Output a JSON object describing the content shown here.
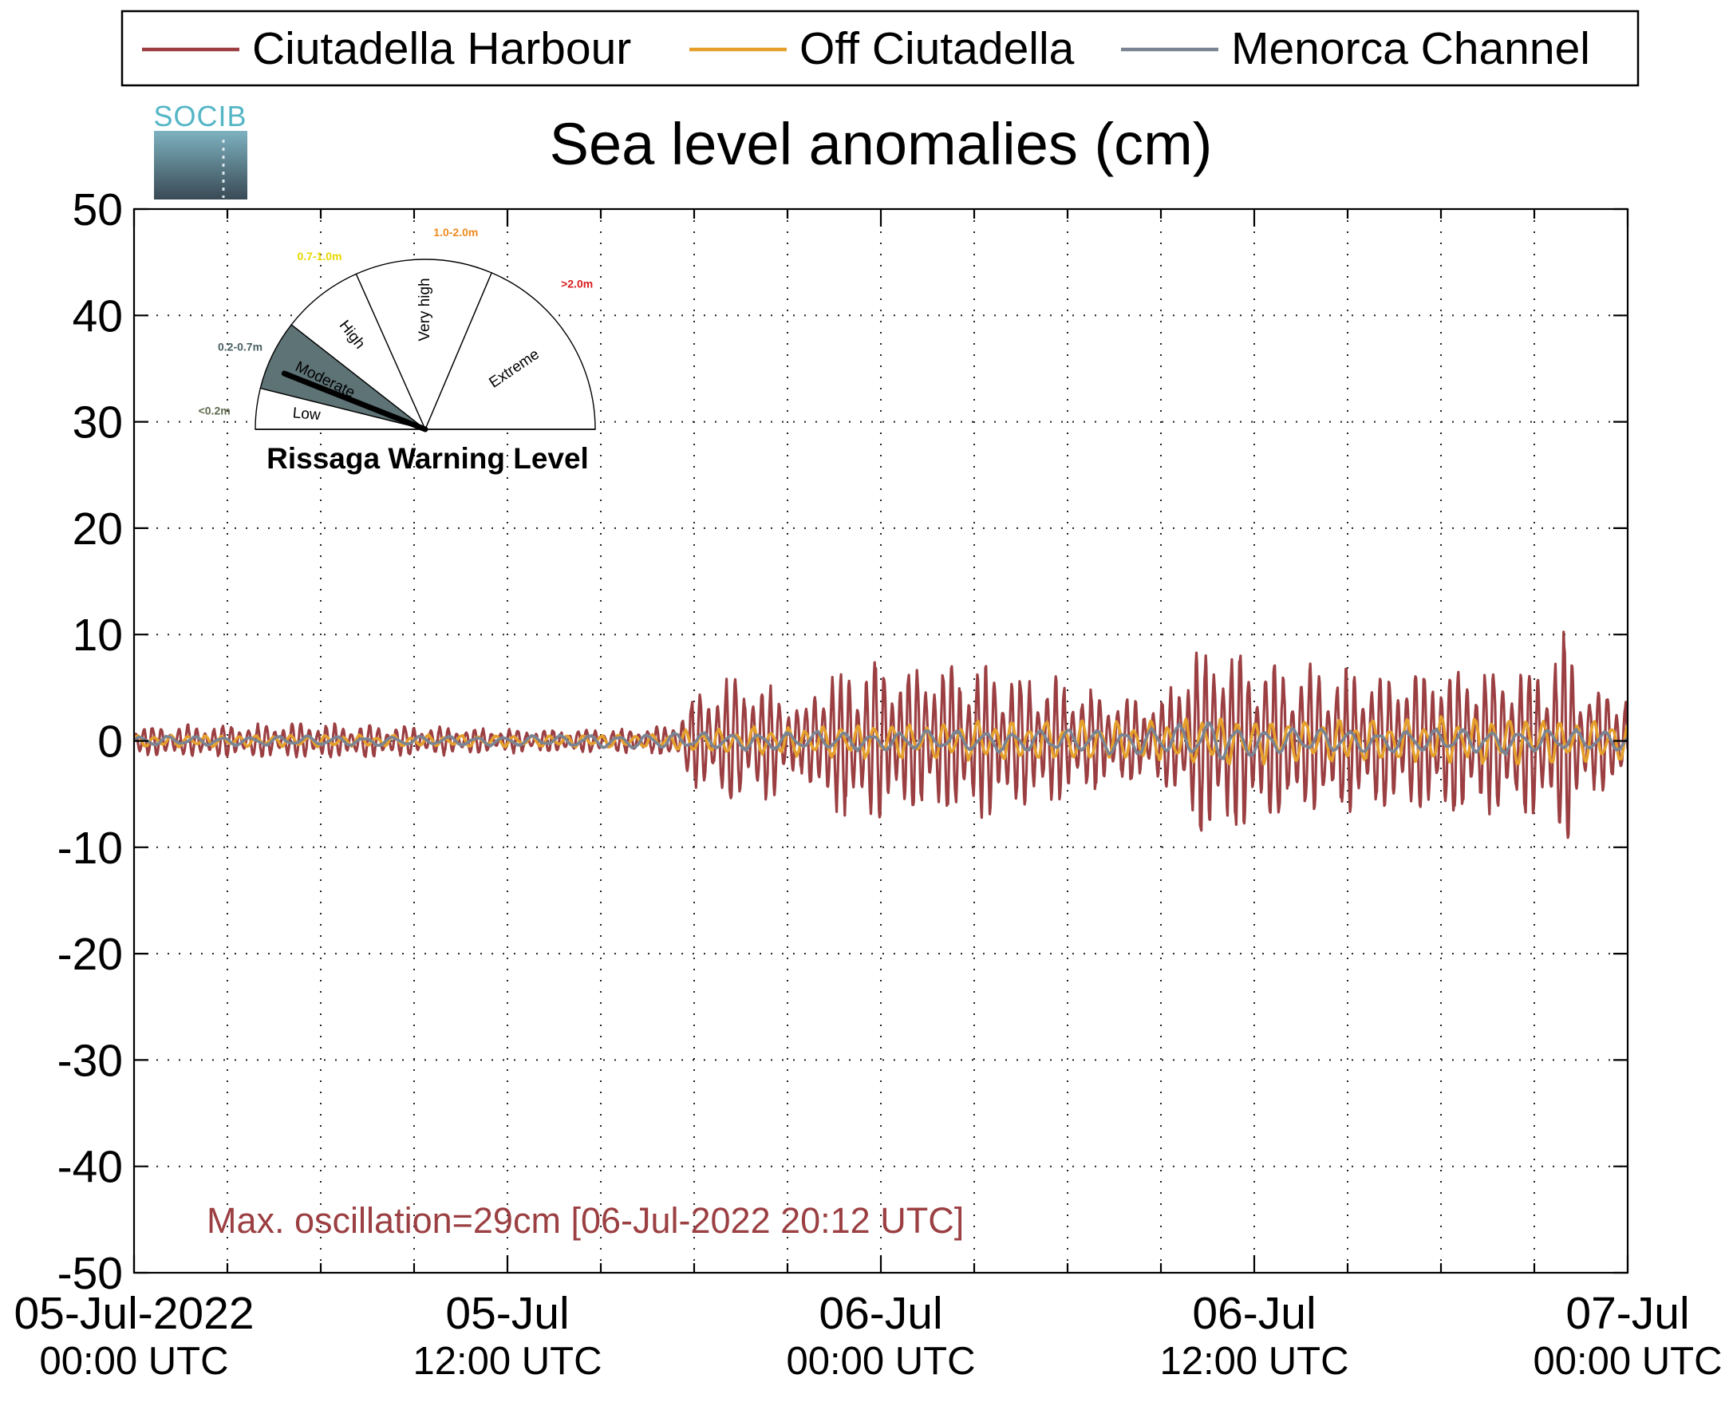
{
  "chart_data": {
    "type": "line",
    "title": "Sea level anomalies (cm)",
    "xlabel": "",
    "ylabel": "",
    "ylim": [
      -50,
      50
    ],
    "xlim_hours": [
      0,
      48
    ],
    "y_ticks": [
      "50",
      "40",
      "30",
      "20",
      "10",
      "0",
      "-10",
      "-20",
      "-30",
      "-40",
      "-50"
    ],
    "x_ticks": [
      {
        "hour": 0,
        "date": "05-Jul-2022",
        "time": "00:00 UTC"
      },
      {
        "hour": 12,
        "date": "05-Jul",
        "time": "12:00 UTC"
      },
      {
        "hour": 24,
        "date": "06-Jul",
        "time": "00:00 UTC"
      },
      {
        "hour": 36,
        "date": "06-Jul",
        "time": "12:00 UTC"
      },
      {
        "hour": 48,
        "date": "07-Jul",
        "time": "00:00 UTC"
      }
    ],
    "grid": true,
    "legend_position": "top",
    "annotation": "Max. oscillation=29cm [06-Jul-2022 20:12 UTC]",
    "series": [
      {
        "name": "Ciutadella Harbour",
        "color": "#9b3f42",
        "amplitude_envelope": {
          "hours": [
            0,
            6,
            12,
            16,
            17.2,
            18,
            19,
            20.5,
            21.5,
            22,
            23.5,
            25,
            27.5,
            28.5,
            30,
            31.5,
            33,
            34,
            35,
            36.5,
            38,
            40,
            42,
            44,
            45.5,
            46,
            46.5,
            47,
            48
          ],
          "amplitude": [
            1.5,
            1.8,
            1.2,
            1.2,
            1.5,
            4.5,
            6.5,
            6,
            3,
            7,
            8,
            8,
            7.5,
            7,
            6,
            4.5,
            4,
            9,
            10,
            8,
            7.5,
            7,
            8,
            7.5,
            8,
            12,
            6,
            5,
            5.5
          ]
        }
      },
      {
        "name": "Off Ciutadella",
        "color": "#e5a02c",
        "amplitude_envelope": {
          "hours": [
            0,
            12,
            17,
            18,
            24,
            30,
            33,
            34.5,
            36,
            40,
            44,
            48
          ],
          "amplitude": [
            0.6,
            0.6,
            0.7,
            1.2,
            1.8,
            2.2,
            2,
            2.5,
            2.2,
            2.3,
            2.5,
            2
          ]
        }
      },
      {
        "name": "Menorca Channel",
        "color": "#7a8493",
        "amplitude_envelope": {
          "hours": [
            0,
            12,
            18,
            24,
            30,
            33,
            35,
            36,
            40,
            44,
            48
          ],
          "amplitude": [
            0.5,
            0.5,
            0.9,
            1,
            1.2,
            1.5,
            2.2,
            1.4,
            1.2,
            1.3,
            1
          ]
        }
      }
    ]
  },
  "legend": {
    "items": [
      {
        "label": "Ciutadella Harbour",
        "color": "#9b3f42"
      },
      {
        "label": "Off Ciutadella",
        "color": "#e5a02c"
      },
      {
        "label": "Menorca Channel",
        "color": "#7a8493"
      }
    ]
  },
  "logo": {
    "text": "SOCIB"
  },
  "gauge": {
    "title": "Rissaga Warning Level",
    "active_level": "Moderate",
    "needle_level_fraction": 0.12,
    "sectors": [
      {
        "label": "Low",
        "range": "<0.2m",
        "range_color": "#5f6b4e"
      },
      {
        "label": "Moderate",
        "range": "0.2-0.7m",
        "range_color": "#4a6064"
      },
      {
        "label": "High",
        "range": "0.7-1.0m",
        "range_color": "#e8d800"
      },
      {
        "label": "Very high",
        "range": "1.0-2.0m",
        "range_color": "#ee8a1e"
      },
      {
        "label": "Extreme",
        "range": ">2.0m",
        "range_color": "#d91e1e"
      }
    ],
    "active_fill": "#5e7376"
  }
}
